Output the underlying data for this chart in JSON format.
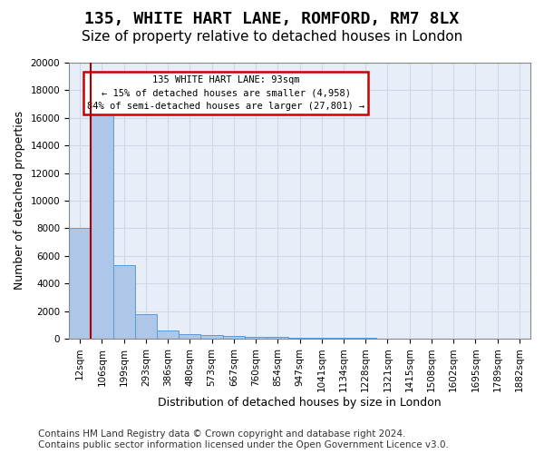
{
  "title": "135, WHITE HART LANE, ROMFORD, RM7 8LX",
  "subtitle": "Size of property relative to detached houses in London",
  "xlabel": "Distribution of detached houses by size in London",
  "ylabel": "Number of detached properties",
  "bar_values": [
    8050,
    16550,
    5300,
    1800,
    600,
    330,
    230,
    180,
    130,
    100,
    80,
    65,
    50,
    40,
    30,
    25,
    20,
    15,
    10,
    8,
    5
  ],
  "bar_labels": [
    "12sqm",
    "106sqm",
    "199sqm",
    "293sqm",
    "386sqm",
    "480sqm",
    "573sqm",
    "667sqm",
    "760sqm",
    "854sqm",
    "947sqm",
    "1041sqm",
    "1134sqm",
    "1228sqm",
    "1321sqm",
    "1415sqm",
    "1508sqm",
    "1602sqm",
    "1695sqm",
    "1789sqm",
    "1882sqm"
  ],
  "bar_color": "#aec6e8",
  "bar_edge_color": "#5b9bd5",
  "vline_x": 0.5,
  "vline_color": "#aa0000",
  "annotation_text": "135 WHITE HART LANE: 93sqm\n← 15% of detached houses are smaller (4,958)\n84% of semi-detached houses are larger (27,801) →",
  "annotation_box_color": "#ffffff",
  "annotation_box_edge": "#cc0000",
  "ylim": [
    0,
    20000
  ],
  "yticks": [
    0,
    2000,
    4000,
    6000,
    8000,
    10000,
    12000,
    14000,
    16000,
    18000,
    20000
  ],
  "grid_color": "#d0d8e8",
  "background_color": "#e8eef8",
  "footer_text": "Contains HM Land Registry data © Crown copyright and database right 2024.\nContains public sector information licensed under the Open Government Licence v3.0.",
  "title_fontsize": 13,
  "subtitle_fontsize": 11,
  "label_fontsize": 9,
  "tick_fontsize": 7.5,
  "footer_fontsize": 7.5
}
